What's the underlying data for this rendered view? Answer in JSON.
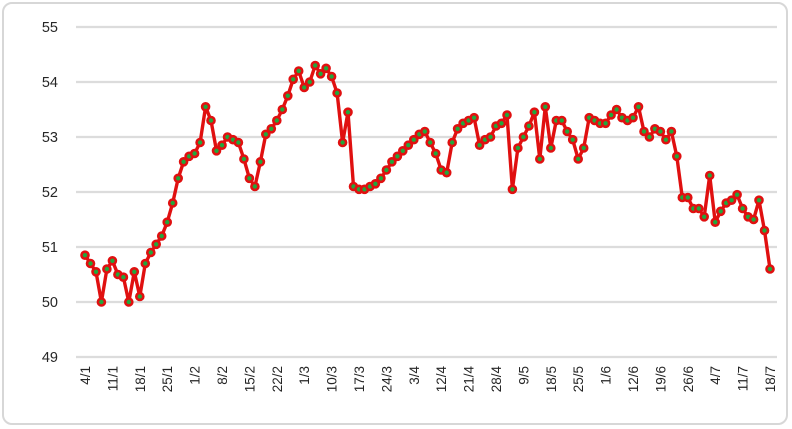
{
  "chart_data": {
    "type": "line",
    "title": "",
    "xlabel": "",
    "ylabel": "",
    "ylim": [
      49,
      55
    ],
    "y_ticks": [
      49,
      50,
      51,
      52,
      53,
      54,
      55
    ],
    "grid": "horizontal",
    "legend_position": "none",
    "x_tick_labels": [
      "4/1",
      "11/1",
      "18/1",
      "25/1",
      "1/2",
      "8/2",
      "15/2",
      "22/2",
      "1/3",
      "10/3",
      "17/3",
      "24/3",
      "3/4",
      "12/4",
      "21/4",
      "28/4",
      "9/5",
      "18/5",
      "25/5",
      "1/6",
      "12/6",
      "19/6",
      "26/6",
      "4/7",
      "11/7",
      "18/7"
    ],
    "label_every_n_points": 5,
    "values": [
      50.85,
      50.7,
      50.55,
      50.0,
      50.6,
      50.75,
      50.5,
      50.45,
      50.0,
      50.55,
      50.1,
      50.7,
      50.9,
      51.05,
      51.2,
      51.45,
      51.8,
      52.25,
      52.55,
      52.65,
      52.7,
      52.9,
      53.55,
      53.3,
      52.75,
      52.85,
      53.0,
      52.95,
      52.9,
      52.6,
      52.25,
      52.1,
      52.55,
      53.05,
      53.15,
      53.3,
      53.5,
      53.75,
      54.05,
      54.2,
      53.9,
      54.0,
      54.3,
      54.15,
      54.25,
      54.1,
      53.8,
      52.9,
      53.45,
      52.1,
      52.05,
      52.05,
      52.1,
      52.15,
      52.25,
      52.4,
      52.55,
      52.65,
      52.75,
      52.85,
      52.95,
      53.05,
      53.1,
      52.9,
      52.7,
      52.4,
      52.35,
      52.9,
      53.15,
      53.25,
      53.3,
      53.35,
      52.85,
      52.95,
      53.0,
      53.2,
      53.25,
      53.4,
      52.05,
      52.8,
      53.0,
      53.2,
      53.45,
      52.6,
      53.55,
      52.8,
      53.3,
      53.3,
      53.1,
      52.95,
      52.6,
      52.8,
      53.35,
      53.3,
      53.25,
      53.25,
      53.4,
      53.5,
      53.35,
      53.3,
      53.35,
      53.55,
      53.1,
      53.0,
      53.15,
      53.1,
      52.95,
      53.1,
      52.65,
      51.9,
      51.9,
      51.7,
      51.7,
      51.55,
      52.3,
      51.45,
      51.65,
      51.8,
      51.85,
      51.95,
      51.7,
      51.55,
      51.5,
      51.85,
      51.3,
      50.6
    ],
    "line_color": "#e01010",
    "marker_fill": "#21a73d",
    "marker_outline": "#e01010",
    "gridline_color": "#dcdcdc",
    "tick_text_color": "#262626",
    "frame_border_color": "#d7d7d7"
  }
}
